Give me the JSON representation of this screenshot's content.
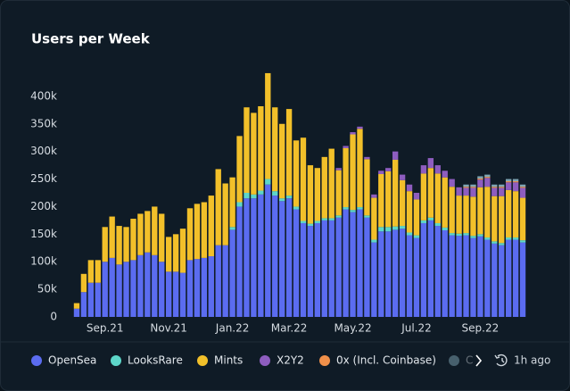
{
  "chart_data": {
    "type": "stacked-bar",
    "title": "Users per Week",
    "categories": [
      null,
      null,
      null,
      null,
      "Sep.21",
      null,
      null,
      null,
      null,
      null,
      null,
      null,
      null,
      "Nov.21",
      null,
      null,
      null,
      null,
      null,
      null,
      null,
      null,
      "Jan.22",
      null,
      null,
      null,
      null,
      null,
      null,
      null,
      "Mar.22",
      null,
      null,
      null,
      null,
      null,
      null,
      null,
      null,
      "May.22",
      null,
      null,
      null,
      null,
      null,
      null,
      null,
      null,
      "Jul.22",
      null,
      null,
      null,
      null,
      null,
      null,
      null,
      null,
      "Sep.22",
      null,
      null,
      null,
      null,
      null,
      null
    ],
    "series": [
      {
        "name": "OpenSea",
        "color": "#5b6cf0",
        "values": [
          15000,
          45000,
          62000,
          62000,
          100000,
          107000,
          95000,
          100000,
          103000,
          112000,
          117000,
          112000,
          100000,
          82000,
          82000,
          80000,
          103000,
          105000,
          107000,
          110000,
          130000,
          130000,
          158000,
          200000,
          215000,
          215000,
          222000,
          240000,
          220000,
          210000,
          215000,
          195000,
          170000,
          165000,
          170000,
          175000,
          175000,
          180000,
          195000,
          190000,
          195000,
          180000,
          135000,
          155000,
          155000,
          158000,
          160000,
          148000,
          143000,
          170000,
          175000,
          165000,
          157000,
          148000,
          147000,
          148000,
          143000,
          146000,
          140000,
          133000,
          130000,
          140000,
          140000,
          135000
        ]
      },
      {
        "name": "LooksRare",
        "color": "#5dd6c9",
        "values": [
          0,
          0,
          0,
          0,
          0,
          0,
          0,
          0,
          0,
          0,
          0,
          0,
          0,
          0,
          0,
          0,
          0,
          0,
          0,
          0,
          0,
          0,
          5000,
          8000,
          10000,
          7000,
          7000,
          10000,
          8000,
          5000,
          5000,
          5000,
          4000,
          4000,
          4000,
          4000,
          4000,
          4000,
          4000,
          4000,
          4000,
          4000,
          5000,
          8000,
          8000,
          6000,
          5000,
          5000,
          5000,
          5000,
          5000,
          5000,
          5000,
          4000,
          4000,
          4000,
          4000,
          4000,
          4000,
          4000,
          4000,
          4000,
          4000,
          4000
        ]
      },
      {
        "name": "Mints",
        "color": "#f2c02a",
        "values": [
          10000,
          33000,
          41000,
          41000,
          63000,
          75000,
          70000,
          63000,
          75000,
          75000,
          75000,
          88000,
          87000,
          63000,
          68000,
          80000,
          94000,
          100000,
          101000,
          110000,
          138000,
          112000,
          90000,
          120000,
          155000,
          148000,
          153000,
          192000,
          152000,
          135000,
          157000,
          120000,
          151000,
          106000,
          96000,
          111000,
          126000,
          82000,
          107000,
          137000,
          142000,
          102000,
          76000,
          96000,
          101000,
          121000,
          83000,
          75000,
          65000,
          85000,
          90000,
          90000,
          91000,
          84000,
          69000,
          68000,
          71000,
          85000,
          92000,
          82000,
          85000,
          86000,
          84000,
          77000
        ]
      },
      {
        "name": "X2Y2",
        "color": "#8e5dbf",
        "values": [
          0,
          0,
          0,
          0,
          0,
          0,
          0,
          0,
          0,
          0,
          0,
          0,
          0,
          0,
          0,
          0,
          0,
          0,
          0,
          0,
          0,
          0,
          0,
          0,
          0,
          0,
          0,
          0,
          0,
          0,
          0,
          0,
          0,
          0,
          0,
          0,
          0,
          4000,
          4000,
          4000,
          4000,
          4000,
          6000,
          6000,
          6000,
          15000,
          10000,
          12000,
          12000,
          15000,
          18000,
          15000,
          12000,
          14000,
          15000,
          14000,
          16000,
          14000,
          16000,
          15000,
          15000,
          14000,
          16000,
          18000
        ]
      },
      {
        "name": "0x (Incl. Coinbase)",
        "color": "#f0904a",
        "values": [
          0,
          0,
          0,
          0,
          0,
          0,
          0,
          0,
          0,
          0,
          0,
          0,
          0,
          0,
          0,
          0,
          0,
          0,
          0,
          0,
          0,
          0,
          0,
          0,
          0,
          0,
          0,
          0,
          0,
          0,
          0,
          0,
          0,
          0,
          0,
          0,
          0,
          0,
          0,
          0,
          0,
          0,
          0,
          0,
          0,
          0,
          0,
          0,
          0,
          0,
          0,
          0,
          0,
          0,
          0,
          2000,
          2000,
          2000,
          2000,
          2000,
          2000,
          2000,
          2000,
          2000
        ]
      },
      {
        "name": "C",
        "color": "#7fa6b4",
        "values": [
          0,
          0,
          0,
          0,
          0,
          0,
          0,
          0,
          0,
          0,
          0,
          0,
          0,
          0,
          0,
          0,
          0,
          0,
          0,
          0,
          0,
          0,
          0,
          0,
          0,
          0,
          0,
          0,
          0,
          0,
          0,
          0,
          0,
          0,
          0,
          0,
          0,
          0,
          0,
          0,
          0,
          0,
          0,
          0,
          0,
          0,
          0,
          0,
          0,
          0,
          0,
          0,
          0,
          0,
          0,
          4000,
          4000,
          4000,
          4000,
          4000,
          4000,
          4000,
          4000,
          4000
        ]
      }
    ],
    "ylim": [
      0,
      450000
    ],
    "yticks": [
      0,
      {
        "value": 50000,
        "label": "50k"
      },
      {
        "value": 100000,
        "label": "100k"
      },
      {
        "value": 150000,
        "label": "150k"
      },
      {
        "value": 200000,
        "label": "200k"
      },
      {
        "value": 250000,
        "label": "250k"
      },
      {
        "value": 300000,
        "label": "300k"
      },
      {
        "value": 350000,
        "label": "350k"
      },
      {
        "value": 400000,
        "label": "400k"
      }
    ],
    "grid": false,
    "legend": "bottom",
    "updated": "1h ago"
  }
}
